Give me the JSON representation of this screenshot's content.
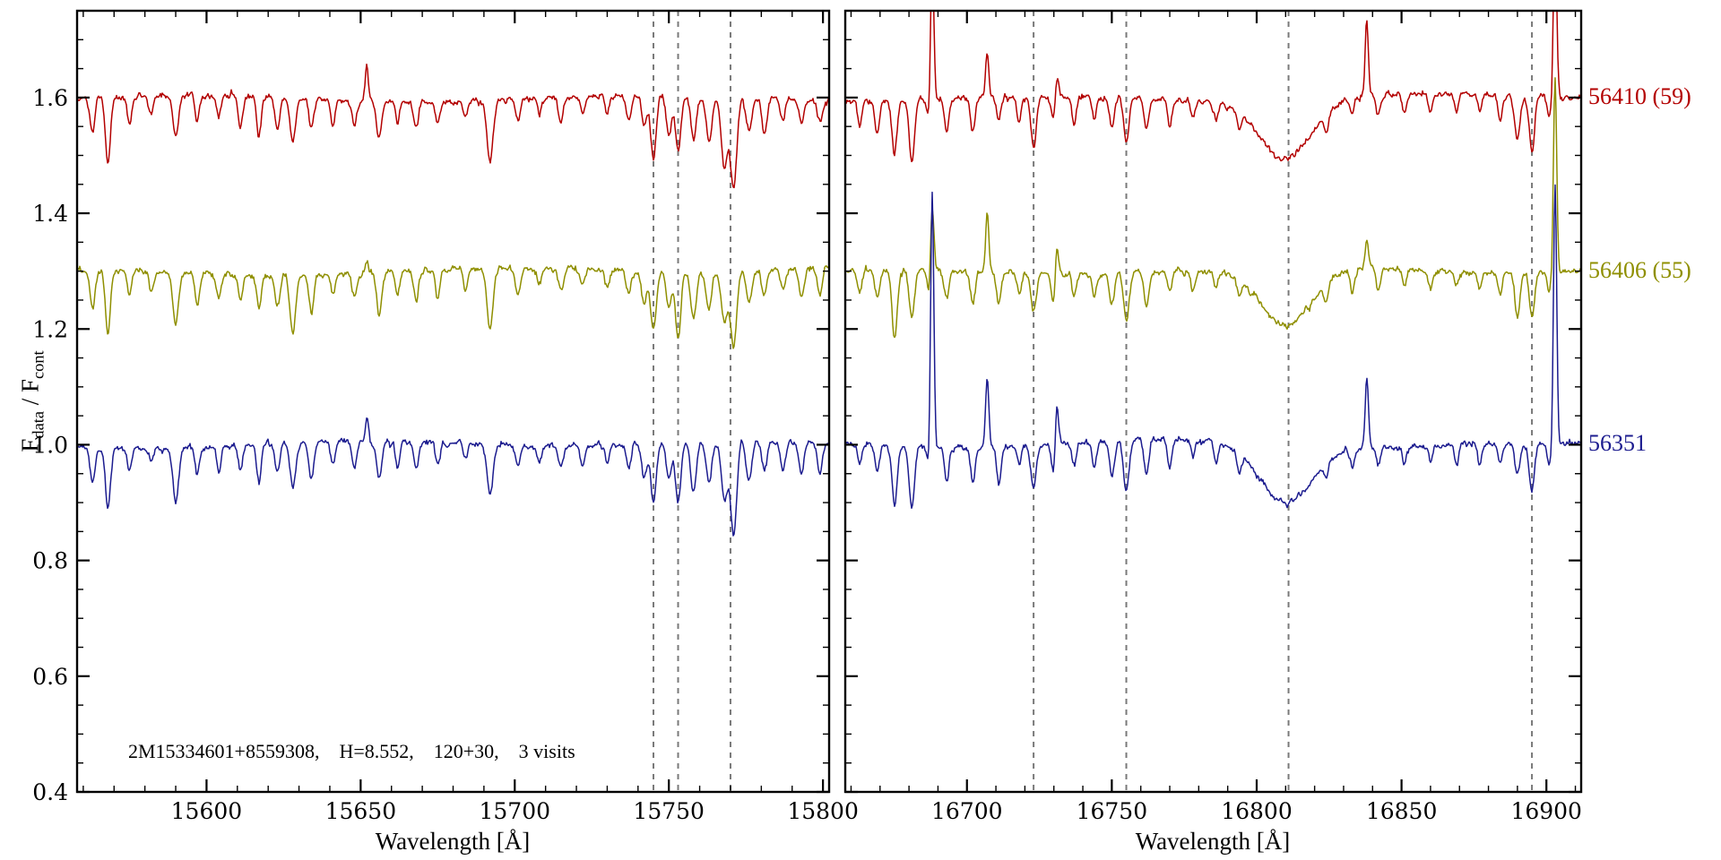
{
  "figure": {
    "background": "#ffffff",
    "annotation": "2M15334601+8559308,    H=8.552,    120+30,    3 visits"
  },
  "chart_data": {
    "type": "line",
    "title": "",
    "xlabel": "Wavelength [Å]",
    "ylabel_parts": [
      "F",
      "data",
      " / F",
      "cont"
    ],
    "ylim": [
      0.4,
      1.75
    ],
    "yticks": [
      0.4,
      0.6,
      0.8,
      1.0,
      1.2,
      1.4,
      1.6
    ],
    "ytick_labels": [
      "0.4",
      "0.6",
      "0.8",
      "1.0",
      "1.2",
      "1.4",
      "1.6"
    ],
    "y_minor_step": 0.05,
    "grid": false,
    "legend_position": "right-outside",
    "noise_sigma": 0.0045,
    "series": [
      {
        "label": "56410 (59)",
        "color": "#b30000",
        "offset": 1.6
      },
      {
        "label": "56406 (55)",
        "color": "#8f8f00",
        "offset": 1.3
      },
      {
        "label": "56351",
        "color": "#1c1c8f",
        "offset": 1.0
      }
    ],
    "panels": [
      {
        "xlim": [
          15558,
          15802
        ],
        "xticks": [
          15600,
          15650,
          15700,
          15750,
          15800
        ],
        "x_minor_step": 10,
        "dashed_lines": [
          15745,
          15753,
          15770
        ],
        "absorption_lines": [
          [
            15563,
            0.8,
            0.07
          ],
          [
            15568,
            0.8,
            0.09
          ],
          [
            15575,
            0.7,
            0.04
          ],
          [
            15582,
            0.7,
            0.03
          ],
          [
            15590,
            0.9,
            0.08
          ],
          [
            15597,
            0.7,
            0.05
          ],
          [
            15604,
            0.7,
            0.04
          ],
          [
            15611,
            0.7,
            0.05
          ],
          [
            15617,
            0.7,
            0.06
          ],
          [
            15623,
            0.8,
            0.05
          ],
          [
            15628,
            0.9,
            0.08
          ],
          [
            15634,
            0.8,
            0.06
          ],
          [
            15641,
            0.7,
            0.04
          ],
          [
            15648,
            0.8,
            0.05
          ],
          [
            15656,
            0.8,
            0.06
          ],
          [
            15662,
            0.7,
            0.04
          ],
          [
            15668,
            0.8,
            0.05
          ],
          [
            15675,
            0.7,
            0.04
          ],
          [
            15684,
            0.7,
            0.03
          ],
          [
            15692,
            1.0,
            0.1
          ],
          [
            15701,
            0.8,
            0.04
          ],
          [
            15708,
            0.7,
            0.03
          ],
          [
            15715,
            0.8,
            0.04
          ],
          [
            15722,
            0.7,
            0.03
          ],
          [
            15730,
            0.7,
            0.03
          ],
          [
            15737,
            0.8,
            0.04
          ],
          [
            15742,
            0.8,
            0.05
          ],
          [
            15745,
            0.9,
            0.09
          ],
          [
            15750,
            0.8,
            0.06
          ],
          [
            15753,
            0.9,
            0.1
          ],
          [
            15758,
            0.9,
            0.07
          ],
          [
            15763,
            0.9,
            0.08
          ],
          [
            15768,
            1.0,
            0.1
          ],
          [
            15771,
            1.0,
            0.13
          ],
          [
            15776,
            0.9,
            0.06
          ],
          [
            15781,
            0.8,
            0.05
          ],
          [
            15787,
            0.8,
            0.04
          ],
          [
            15793,
            0.8,
            0.05
          ],
          [
            15799,
            0.8,
            0.05
          ]
        ],
        "emission_lines": [
          {
            "x": 15652,
            "heights": [
              0.06,
              0.02,
              0.04
            ]
          }
        ]
      },
      {
        "xlim": [
          16658,
          16912
        ],
        "xticks": [
          16700,
          16750,
          16800,
          16850,
          16900
        ],
        "x_minor_step": 10,
        "dashed_lines": [
          16723,
          16755,
          16811,
          16895
        ],
        "broad_feature": {
          "center": 16810,
          "sigma": 9,
          "depth": 0.1
        },
        "absorption_lines": [
          [
            16663,
            0.7,
            0.04
          ],
          [
            16669,
            0.8,
            0.05
          ],
          [
            16675,
            0.9,
            0.11
          ],
          [
            16681,
            0.9,
            0.09
          ],
          [
            16687,
            0.7,
            0.04
          ],
          [
            16693,
            0.8,
            0.05
          ],
          [
            16702,
            0.8,
            0.06
          ],
          [
            16711,
            0.8,
            0.05
          ],
          [
            16718,
            0.7,
            0.04
          ],
          [
            16723,
            0.9,
            0.08
          ],
          [
            16730,
            0.8,
            0.05
          ],
          [
            16737,
            0.7,
            0.04
          ],
          [
            16744,
            0.7,
            0.04
          ],
          [
            16750,
            0.8,
            0.05
          ],
          [
            16755,
            0.9,
            0.09
          ],
          [
            16762,
            0.8,
            0.05
          ],
          [
            16770,
            0.7,
            0.04
          ],
          [
            16778,
            0.7,
            0.03
          ],
          [
            16786,
            0.7,
            0.03
          ],
          [
            16794,
            0.7,
            0.03
          ],
          [
            16824,
            0.7,
            0.03
          ],
          [
            16833,
            0.7,
            0.03
          ],
          [
            16842,
            0.7,
            0.03
          ],
          [
            16851,
            0.7,
            0.03
          ],
          [
            16860,
            0.7,
            0.03
          ],
          [
            16869,
            0.7,
            0.03
          ],
          [
            16877,
            0.7,
            0.03
          ],
          [
            16884,
            0.7,
            0.04
          ],
          [
            16890,
            0.9,
            0.07
          ],
          [
            16895,
            0.9,
            0.08
          ],
          [
            16901,
            0.7,
            0.04
          ]
        ],
        "emission_lines": [
          {
            "x": 16688,
            "heights": [
              0.27,
              0.12,
              0.45
            ]
          },
          {
            "x": 16707,
            "heights": [
              0.08,
              0.1,
              0.12
            ]
          },
          {
            "x": 16731,
            "heights": [
              0.05,
              0.06,
              0.09
            ]
          },
          {
            "x": 16838,
            "heights": [
              0.13,
              0.05,
              0.12
            ]
          },
          {
            "x": 16903,
            "heights": [
              0.3,
              0.34,
              0.45
            ]
          }
        ]
      }
    ]
  }
}
